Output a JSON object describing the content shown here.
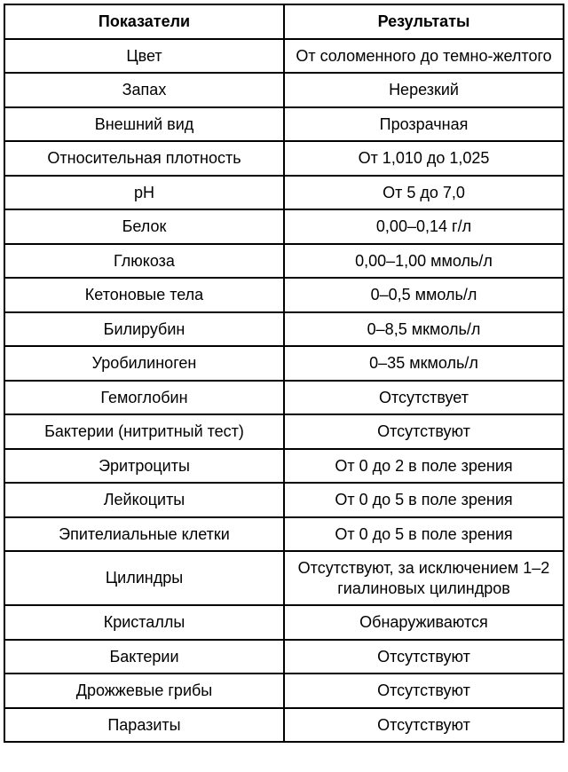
{
  "table": {
    "type": "table",
    "border_color": "#000000",
    "background_color": "#ffffff",
    "text_color": "#000000",
    "font_family": "Arial",
    "header_fontsize": 18,
    "cell_fontsize": 18,
    "border_width": 2,
    "column_widths_pct": [
      50,
      50
    ],
    "columns": [
      "Показатели",
      "Результаты"
    ],
    "rows": [
      [
        "Цвет",
        "От соломенного до темно-желтого"
      ],
      [
        "Запах",
        "Нерезкий"
      ],
      [
        "Внешний вид",
        "Прозрачная"
      ],
      [
        "Относительная плотность",
        "От 1,010 до 1,025"
      ],
      [
        "pH",
        "От 5 до 7,0"
      ],
      [
        "Белок",
        "0,00–0,14 г/л"
      ],
      [
        "Глюкоза",
        "0,00–1,00 ммоль/л"
      ],
      [
        "Кетоновые тела",
        "0–0,5 ммоль/л"
      ],
      [
        "Билирубин",
        "0–8,5 мкмоль/л"
      ],
      [
        "Уробилиноген",
        "0–35 мкмоль/л"
      ],
      [
        "Гемоглобин",
        "Отсутствует"
      ],
      [
        "Бактерии (нитритный тест)",
        "Отсутствуют"
      ],
      [
        "Эритроциты",
        "От 0 до 2 в поле зрения"
      ],
      [
        "Лейкоциты",
        "От 0 до 5 в поле зрения"
      ],
      [
        "Эпителиальные клетки",
        "От 0 до 5 в поле зрения"
      ],
      [
        "Цилиндры",
        "Отсутствуют, за исключением 1–2 гиалиновых цилиндров"
      ],
      [
        "Кристаллы",
        "Обнаруживаются"
      ],
      [
        "Бактерии",
        "Отсутствуют"
      ],
      [
        "Дрожжевые грибы",
        "Отсутствуют"
      ],
      [
        "Паразиты",
        "Отсутствуют"
      ]
    ]
  }
}
